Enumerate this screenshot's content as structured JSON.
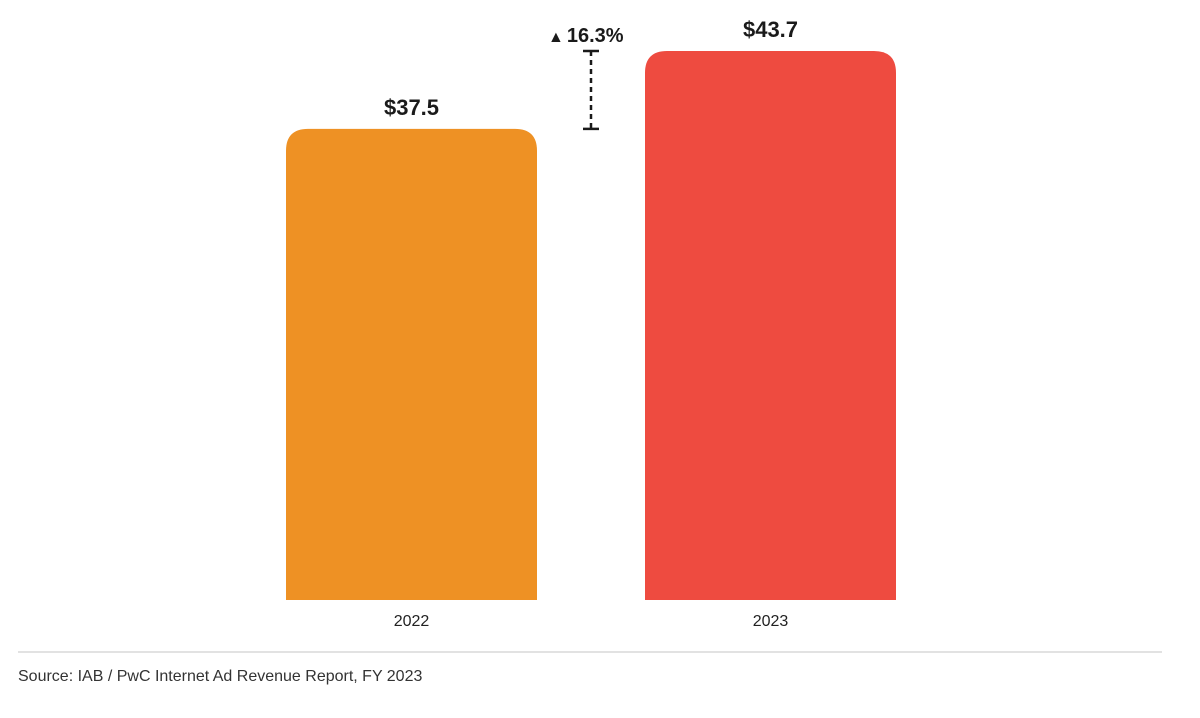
{
  "chart_data": {
    "type": "bar",
    "title": "",
    "xlabel": "",
    "ylabel": "",
    "categories": [
      "2022",
      "2023"
    ],
    "values": [
      37.5,
      43.7
    ],
    "value_labels": [
      "$37.5",
      "$43.7"
    ],
    "colors": [
      "#ee9124",
      "#ee4b40"
    ],
    "ylim": [
      0,
      43.7
    ],
    "grid": false,
    "legend": "none",
    "annotations": [
      {
        "type": "change-bracket",
        "from": "2022",
        "to": "2023",
        "text": "16.3%",
        "icon": "up-triangle-icon",
        "icon_glyph": "▲"
      }
    ]
  },
  "footer": {
    "source": "Source: IAB / PwC Internet Ad Revenue Report, FY 2023"
  }
}
